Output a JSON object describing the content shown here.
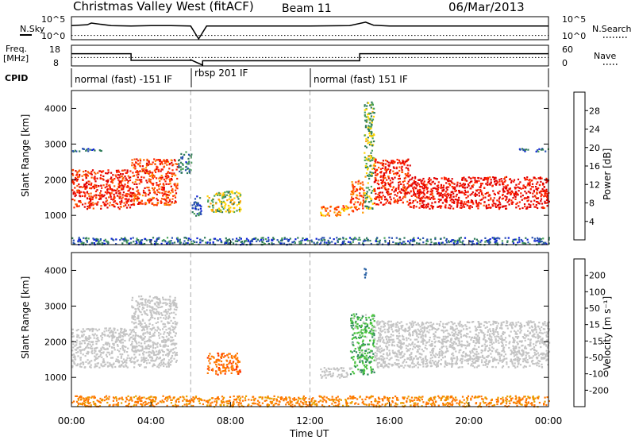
{
  "header": {
    "title": "Christmas Valley West (fitACF)",
    "beam": "Beam 11",
    "date": "06/Mar/2013"
  },
  "colors": {
    "power_scale": [
      "#0a1fd6",
      "#2a52b0",
      "#2f7a5a",
      "#4aa35a",
      "#ffd400",
      "#ff9a00",
      "#ff5a00",
      "#ff2200",
      "#e00000"
    ],
    "velocity_scale": [
      "#1a2fc0",
      "#205aa0",
      "#2e8a5a",
      "#4bc440",
      "#c8c8c8",
      "#e8a000",
      "#ff7700",
      "#ff3300",
      "#e00000"
    ],
    "ground_scatter": "#c4c4c4"
  },
  "chart_data": [
    {
      "name": "N.Sky / N.Search",
      "type": "line",
      "left_axis_label": "N.Sky",
      "right_axis_label": "N.Search",
      "left_ticks": [
        "10^5",
        "10^0"
      ],
      "right_ticks": [
        "10^5",
        "10^0"
      ],
      "series": [
        {
          "name": "N.Sky",
          "style": "solid",
          "x": [
            0.0,
            0.8,
            1.0,
            2.0,
            3.0,
            4.0,
            5.0,
            6.0,
            6.4,
            6.8,
            8.0,
            10.0,
            12.0,
            14.0,
            14.8,
            15.2,
            16.0,
            18.0,
            20.0,
            22.0,
            24.0
          ],
          "y_log10": [
            3.1,
            3.3,
            3.7,
            3.1,
            3.0,
            3.1,
            3.1,
            3.0,
            0.0,
            3.0,
            3.0,
            3.0,
            3.0,
            3.1,
            3.9,
            3.2,
            3.0,
            3.0,
            3.0,
            3.0,
            3.0
          ]
        },
        {
          "name": "N.Search",
          "style": "dotted",
          "x": [
            0,
            24
          ],
          "y_log10": [
            0.8,
            0.8
          ]
        }
      ]
    },
    {
      "name": "Freq / Nave",
      "type": "line",
      "left_axis_label": "Freq. [MHz]",
      "right_axis_label": "Nave",
      "left_ticks": [
        "18",
        "8"
      ],
      "right_ticks": [
        "60",
        "0"
      ],
      "freq_ylim": [
        8,
        18
      ],
      "nave_ylim": [
        0,
        60
      ],
      "series": [
        {
          "name": "Freq",
          "style": "solid",
          "unit": "MHz",
          "x": [
            0.0,
            3.0,
            3.0,
            6.0,
            6.0,
            6.6,
            6.6,
            12.0,
            14.5,
            14.5,
            24.0
          ],
          "y": [
            14.0,
            14.0,
            10.5,
            10.5,
            10.8,
            8.0,
            10.3,
            10.3,
            10.3,
            14.0,
            14.0
          ]
        },
        {
          "name": "Nave",
          "style": "dotted",
          "x": [
            0,
            24
          ],
          "y": [
            24,
            24
          ]
        }
      ]
    },
    {
      "name": "CPID",
      "type": "table",
      "label": "CPID",
      "segments": [
        {
          "start": 0.0,
          "end": 6.0,
          "text": "normal (fast) -151 IF"
        },
        {
          "start": 6.0,
          "end": 12.0,
          "text": "rbsp 201 IF"
        },
        {
          "start": 12.0,
          "end": 24.0,
          "text": "normal (fast) 151 IF"
        }
      ]
    },
    {
      "name": "Power",
      "type": "heatmap",
      "ylabel": "Slant Range [km]",
      "yticks": [
        1000,
        2000,
        3000,
        4000
      ],
      "ylim": [
        180,
        4500
      ],
      "xlim": [
        0,
        24
      ],
      "colorbar_label": "Power [dB]",
      "colorbar_ticks": [
        "4",
        "8",
        "12",
        "16",
        "20",
        "24",
        "28"
      ],
      "colorbar_range": [
        0,
        30
      ],
      "scatter_regions": [
        {
          "t0": 0.0,
          "t1": 3.0,
          "r0": 1200,
          "r1": 2300,
          "power": 26
        },
        {
          "t0": 3.0,
          "t1": 5.3,
          "r0": 1300,
          "r1": 2600,
          "power": 24
        },
        {
          "t0": 5.3,
          "t1": 6.0,
          "r0": 2200,
          "r1": 2800,
          "power": 8
        },
        {
          "t0": 6.0,
          "t1": 6.5,
          "r0": 1000,
          "r1": 1600,
          "power": 6
        },
        {
          "t0": 6.8,
          "t1": 8.5,
          "r0": 1100,
          "r1": 1700,
          "power": 14
        },
        {
          "t0": 12.5,
          "t1": 14.0,
          "r0": 1000,
          "r1": 1300,
          "power": 20
        },
        {
          "t0": 14.0,
          "t1": 14.7,
          "r0": 1100,
          "r1": 2000,
          "power": 22
        },
        {
          "t0": 14.7,
          "t1": 15.2,
          "r0": 1200,
          "r1": 4200,
          "power": 12
        },
        {
          "t0": 15.2,
          "t1": 17.0,
          "r0": 1300,
          "r1": 2600,
          "power": 26
        },
        {
          "t0": 17.0,
          "t1": 24.0,
          "r0": 1200,
          "r1": 2100,
          "power": 28
        },
        {
          "t0": 0.0,
          "t1": 24.0,
          "r0": 200,
          "r1": 400,
          "power": 6
        },
        {
          "t0": 0.0,
          "t1": 1.5,
          "r0": 2800,
          "r1": 2900,
          "power": 6
        },
        {
          "t0": 22.5,
          "t1": 24.0,
          "r0": 2800,
          "r1": 2900,
          "power": 6
        }
      ]
    },
    {
      "name": "Velocity",
      "type": "heatmap",
      "ylabel": "Slant Range [km]",
      "yticks": [
        1000,
        2000,
        3000,
        4000
      ],
      "ylim": [
        180,
        4500
      ],
      "xlim": [
        0,
        24
      ],
      "xlabel": "Time UT",
      "xticks": [
        "00:00",
        "04:00",
        "08:00",
        "12:00",
        "16:00",
        "20:00",
        "00:00"
      ],
      "colorbar_label": "Velocity [m s⁻¹]",
      "colorbar_ticks": [
        "-200",
        "-100",
        "-50",
        "-15",
        "15",
        "50",
        "100",
        "200"
      ],
      "colorbar_range": [
        -250,
        250
      ],
      "scatter_regions": [
        {
          "t0": 0.0,
          "t1": 5.3,
          "r0": 1300,
          "r1": 2400,
          "velocity": 0,
          "ground": true
        },
        {
          "t0": 3.0,
          "t1": 5.3,
          "r0": 2400,
          "r1": 3300,
          "velocity": 0,
          "ground": true
        },
        {
          "t0": 6.8,
          "t1": 8.5,
          "r0": 1100,
          "r1": 1700,
          "velocity": -80
        },
        {
          "t0": 12.5,
          "t1": 14.0,
          "r0": 1000,
          "r1": 1300,
          "velocity": 0,
          "ground": true
        },
        {
          "t0": 14.0,
          "t1": 15.2,
          "r0": 1100,
          "r1": 2800,
          "velocity": 40
        },
        {
          "t0": 15.2,
          "t1": 24.0,
          "r0": 1300,
          "r1": 2600,
          "velocity": 0,
          "ground": true
        },
        {
          "t0": 0.0,
          "t1": 24.0,
          "r0": 200,
          "r1": 500,
          "velocity": -60
        },
        {
          "t0": 14.7,
          "t1": 14.8,
          "r0": 3800,
          "r1": 4200,
          "velocity": 150
        }
      ]
    }
  ]
}
